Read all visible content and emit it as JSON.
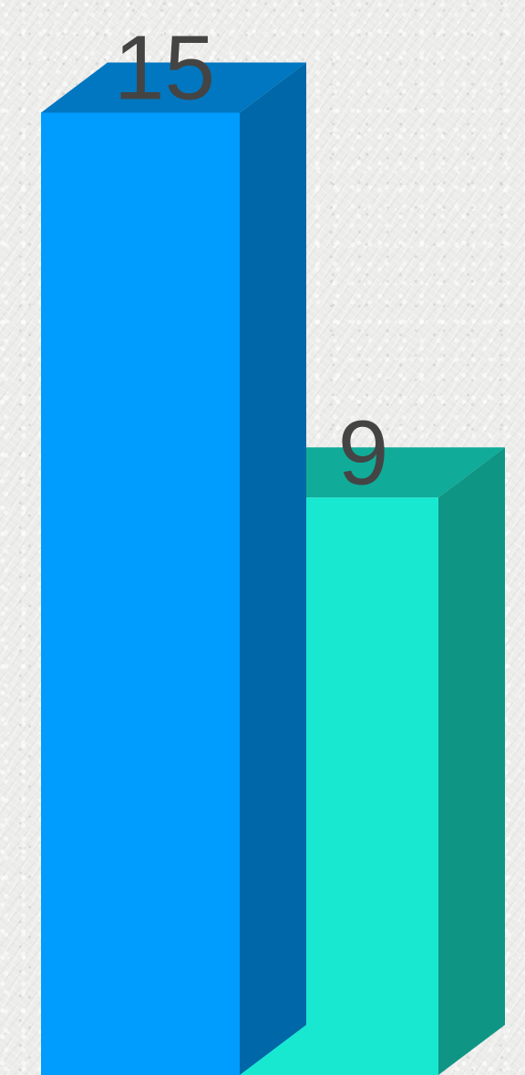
{
  "chart_data": {
    "type": "bar",
    "style": "3d",
    "categories": [
      "",
      ""
    ],
    "values": [
      15,
      9
    ],
    "data_labels": [
      "15",
      "9"
    ],
    "colors": {
      "front": [
        "#009dff",
        "#19e8d1"
      ],
      "top": [
        "#0077c0",
        "#10ab99"
      ],
      "side": [
        "#0067a8",
        "#0f9584"
      ]
    },
    "label_color": "#444444",
    "ylim": [
      0,
      16.5
    ],
    "grid": false,
    "legend": "none"
  }
}
